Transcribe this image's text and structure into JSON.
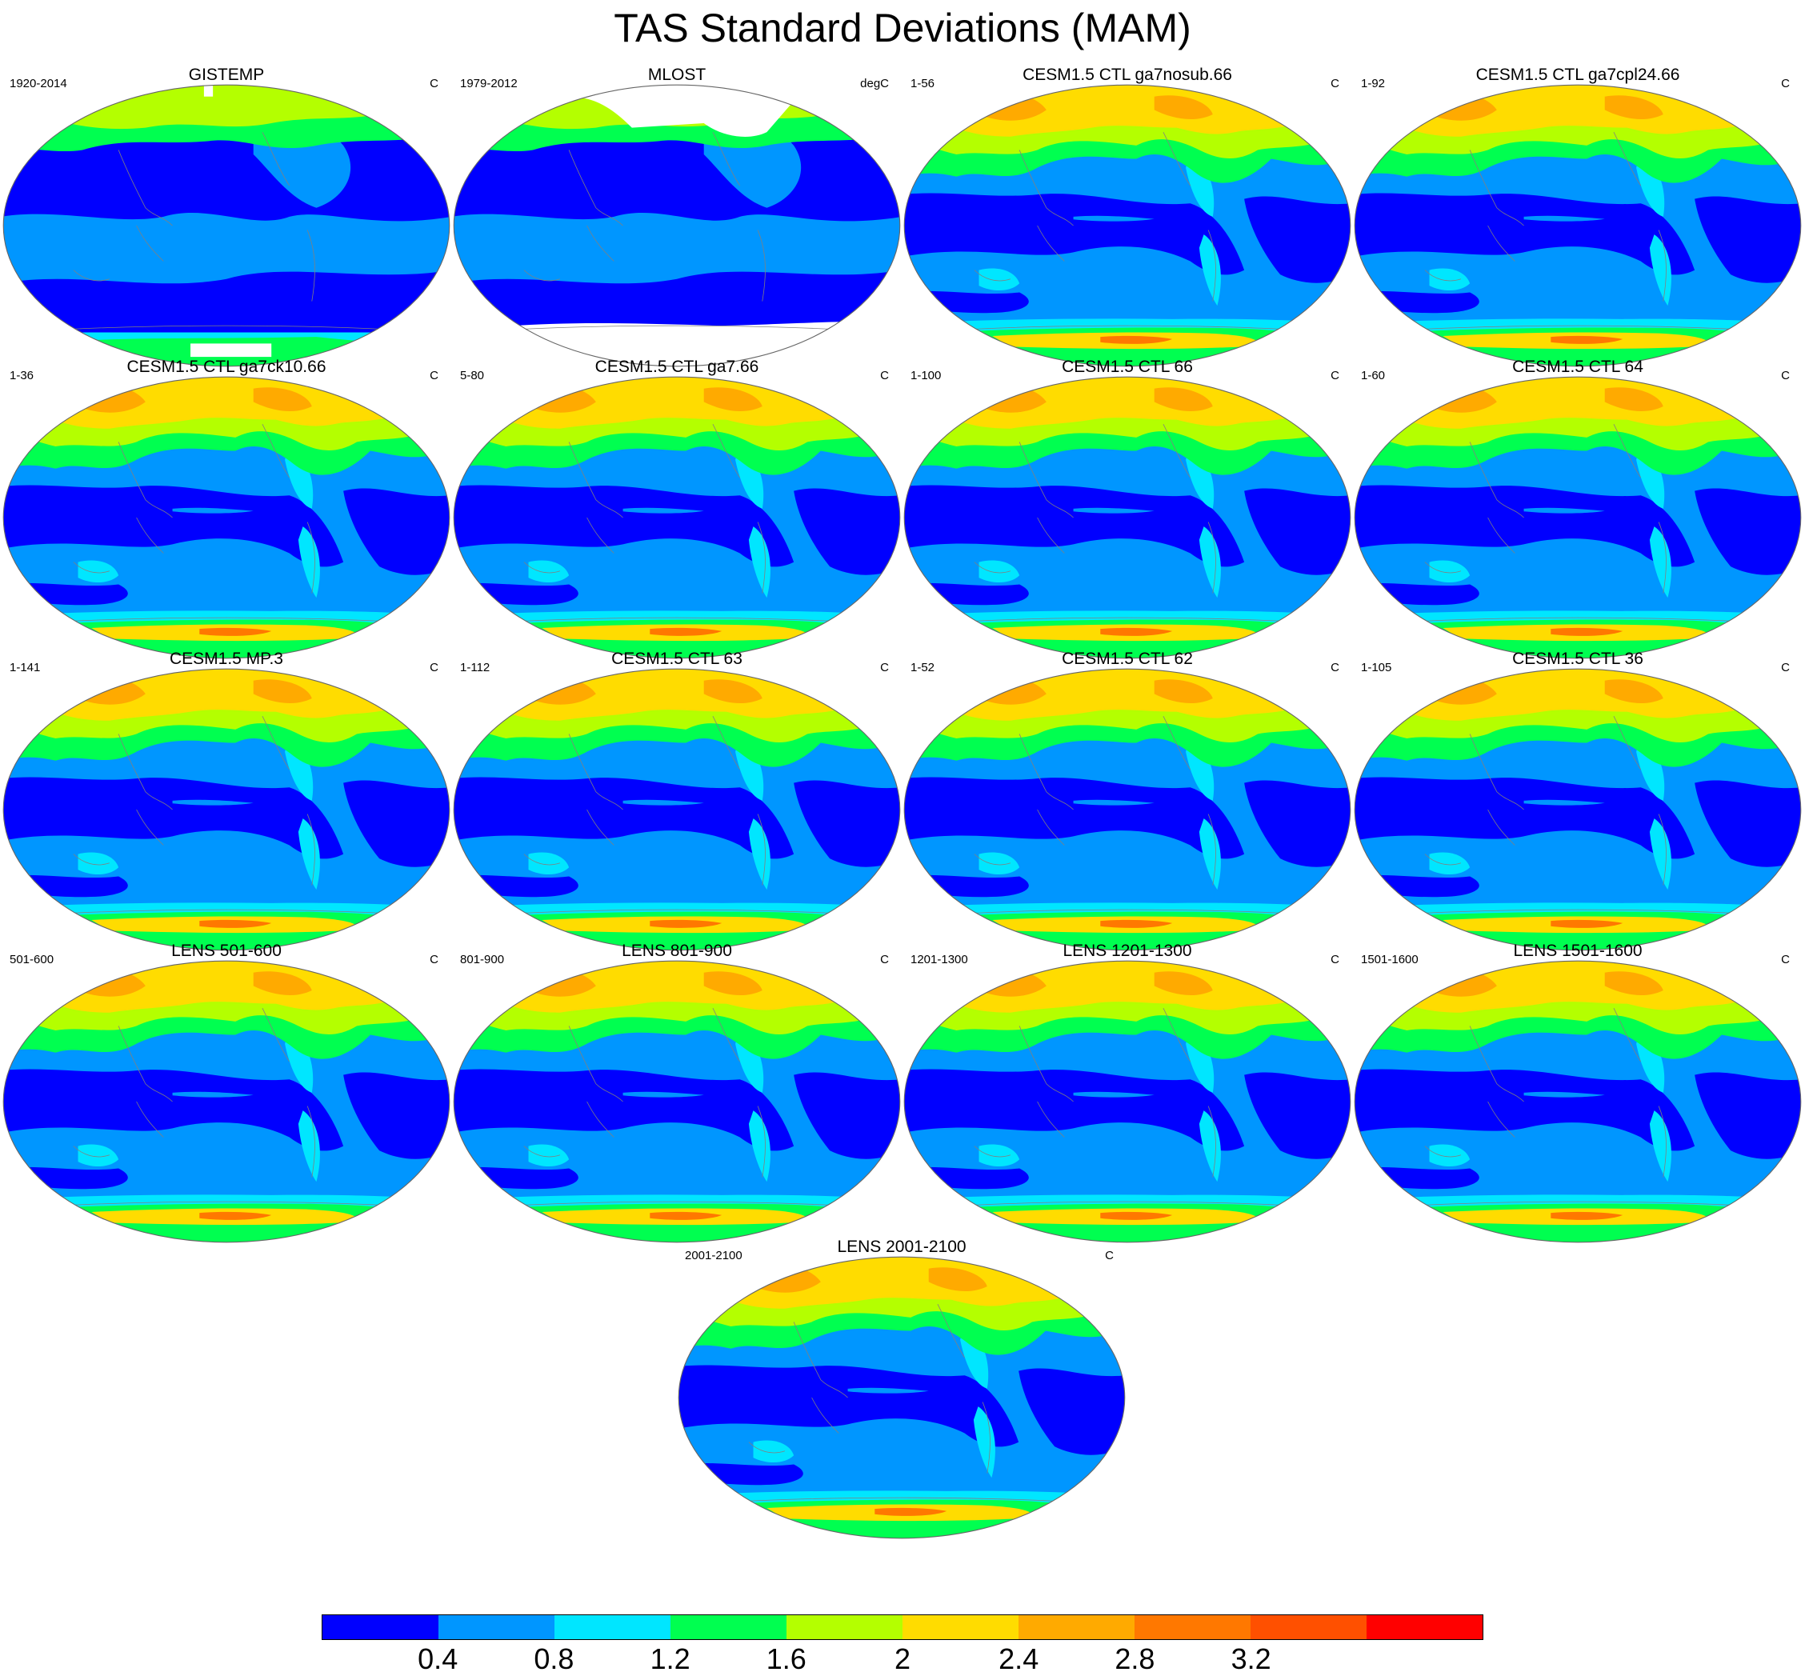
{
  "title": "TAS Standard Deviations (MAM)",
  "panels": [
    {
      "title": "GISTEMP",
      "left": "1920-2014",
      "right": "C",
      "obs": "gistemp"
    },
    {
      "title": "MLOST",
      "left": "1979-2012",
      "right": "degC",
      "obs": "mlost"
    },
    {
      "title": "CESM1.5 CTL ga7nosub.66",
      "left": "1-56",
      "right": "C"
    },
    {
      "title": "CESM1.5 CTL ga7cpl24.66",
      "left": "1-92",
      "right": "C"
    },
    {
      "title": "CESM1.5 CTL ga7ck10.66",
      "left": "1-36",
      "right": "C"
    },
    {
      "title": "CESM1.5 CTL ga7.66",
      "left": "5-80",
      "right": "C"
    },
    {
      "title": "CESM1.5 CTL 66",
      "left": "1-100",
      "right": "C"
    },
    {
      "title": "CESM1.5 CTL 64",
      "left": "1-60",
      "right": "C"
    },
    {
      "title": "CESM1.5 MP.3",
      "left": "1-141",
      "right": "C"
    },
    {
      "title": "CESM1.5 CTL 63",
      "left": "1-112",
      "right": "C"
    },
    {
      "title": "CESM1.5 CTL 62",
      "left": "1-52",
      "right": "C"
    },
    {
      "title": "CESM1.5 CTL 36",
      "left": "1-105",
      "right": "C"
    },
    {
      "title": "LENS 501-600",
      "left": "501-600",
      "right": "C"
    },
    {
      "title": "LENS 801-900",
      "left": "801-900",
      "right": "C"
    },
    {
      "title": "LENS 1201-1300",
      "left": "1201-1300",
      "right": "C"
    },
    {
      "title": "LENS 1501-1600",
      "left": "1501-1600",
      "right": "C"
    },
    {
      "title": "LENS 2001-2100",
      "left": "2001-2100",
      "right": "C"
    }
  ],
  "colorbar": {
    "colors": [
      "#0000ff",
      "#0096ff",
      "#00e6ff",
      "#00ff50",
      "#b4ff00",
      "#ffdc00",
      "#ffaa00",
      "#ff7800",
      "#ff5000",
      "#ff0000"
    ],
    "labels": [
      "0.4",
      "0.8",
      "1.2",
      "1.6",
      "2",
      "2.4",
      "2.8",
      "3.2"
    ]
  }
}
